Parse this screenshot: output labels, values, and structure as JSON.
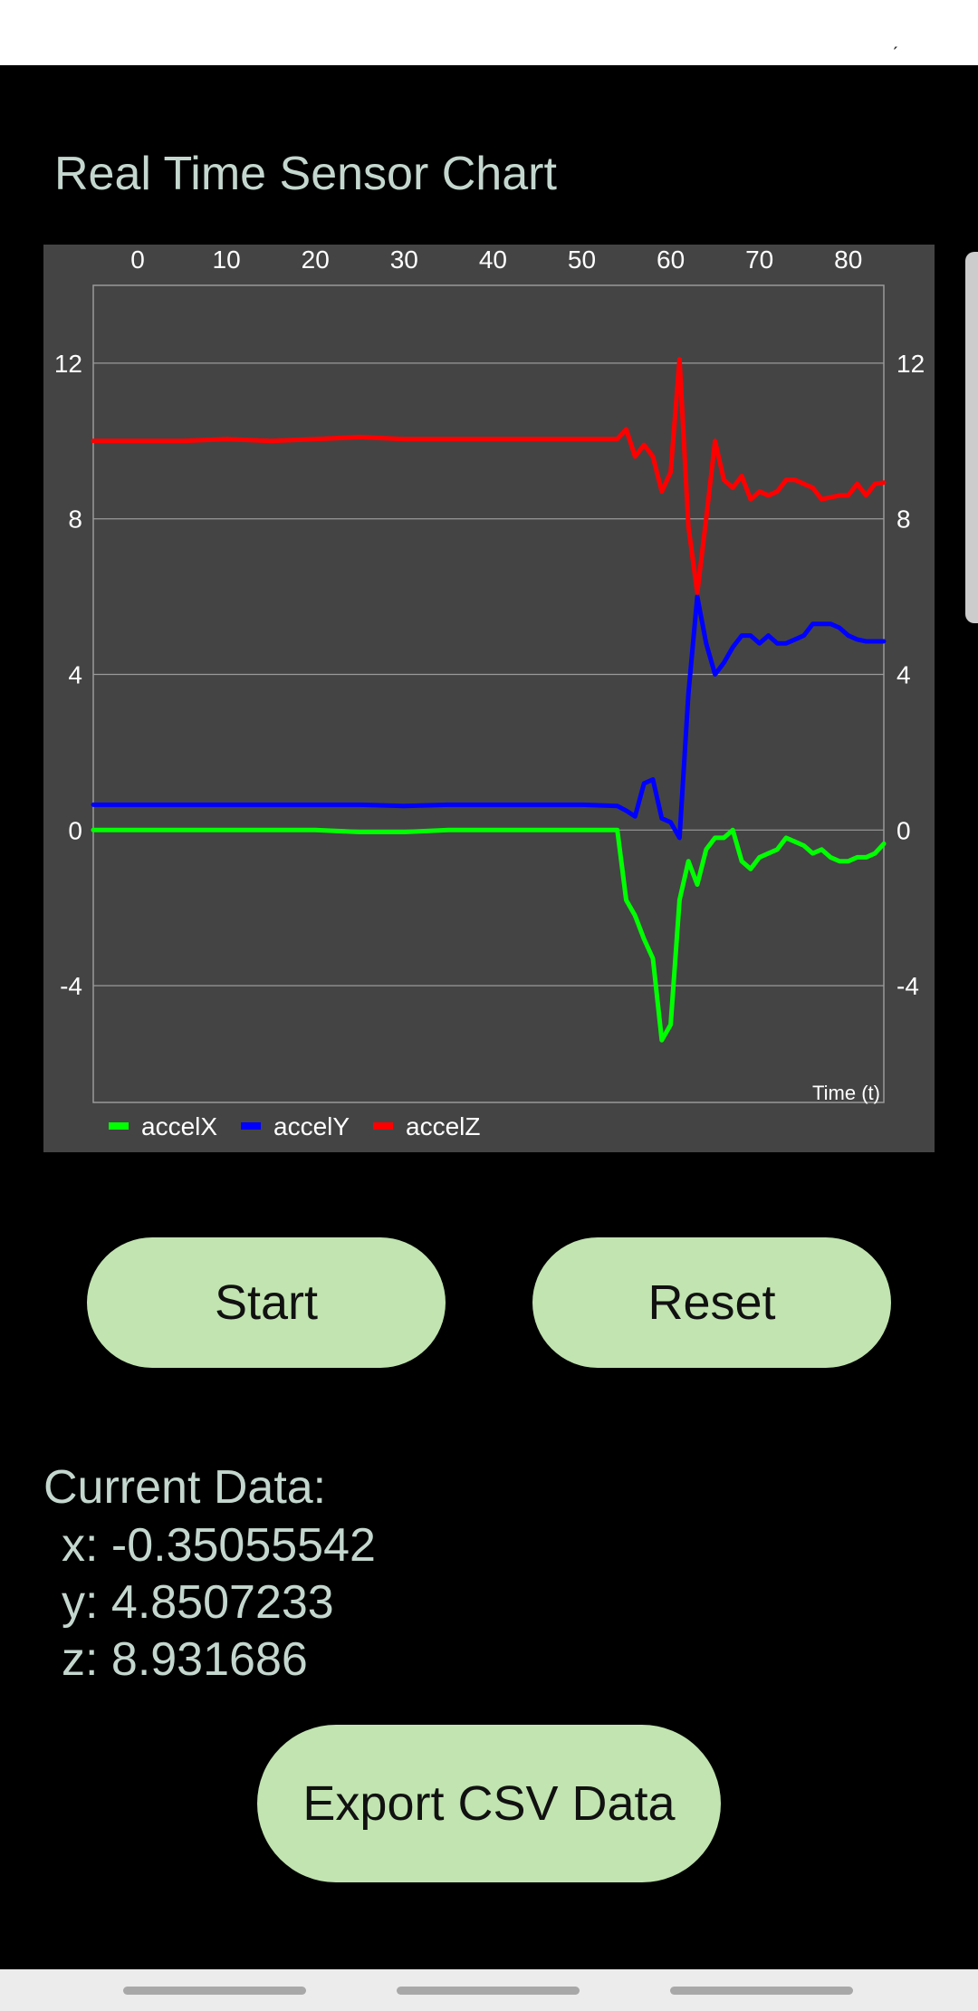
{
  "status_bar": {
    "text": "ˏ"
  },
  "app_title": "Real Time Sensor Chart",
  "chart_data": {
    "type": "line",
    "title": "",
    "xlabel": "Time (t)",
    "ylabel": "",
    "xlim": [
      -5,
      84
    ],
    "ylim": [
      -7,
      14
    ],
    "x_ticks": [
      "0",
      "10",
      "20",
      "30",
      "40",
      "50",
      "60",
      "70",
      "80"
    ],
    "y_ticks": [
      "12",
      "8",
      "4",
      "0",
      "-4"
    ],
    "grid": true,
    "legend_position": "bottom-left",
    "x": [
      -5,
      0,
      5,
      10,
      15,
      20,
      25,
      30,
      35,
      40,
      45,
      50,
      54,
      55,
      56,
      57,
      58,
      59,
      60,
      61,
      62,
      63,
      64,
      65,
      66,
      67,
      68,
      69,
      70,
      71,
      72,
      73,
      74,
      75,
      76,
      77,
      78,
      79,
      80,
      81,
      82,
      83,
      84
    ],
    "series": [
      {
        "name": "accelX",
        "color": "#00ff00",
        "values": [
          0,
          0,
          0,
          0,
          0,
          0,
          -0.05,
          -0.05,
          0,
          0,
          0,
          0,
          0,
          -1.8,
          -2.2,
          -2.8,
          -3.3,
          -5.4,
          -5.0,
          -1.8,
          -0.8,
          -1.4,
          -0.5,
          -0.2,
          -0.2,
          0,
          -0.8,
          -1.0,
          -0.7,
          -0.6,
          -0.5,
          -0.2,
          -0.3,
          -0.4,
          -0.6,
          -0.5,
          -0.7,
          -0.8,
          -0.8,
          -0.7,
          -0.7,
          -0.6,
          -0.35
        ]
      },
      {
        "name": "accelY",
        "color": "#0000ff",
        "values": [
          0.65,
          0.65,
          0.65,
          0.65,
          0.65,
          0.65,
          0.65,
          0.62,
          0.65,
          0.65,
          0.65,
          0.65,
          0.62,
          0.5,
          0.35,
          1.2,
          1.3,
          0.3,
          0.2,
          -0.2,
          3.5,
          6.0,
          4.8,
          4.0,
          4.3,
          4.7,
          5.0,
          5.0,
          4.8,
          5.0,
          4.8,
          4.8,
          4.9,
          5.0,
          5.3,
          5.3,
          5.3,
          5.2,
          5.0,
          4.9,
          4.85,
          4.85,
          4.85
        ]
      },
      {
        "name": "accelZ",
        "color": "#ff0000",
        "values": [
          10.0,
          10.0,
          10.0,
          10.05,
          10.0,
          10.05,
          10.1,
          10.05,
          10.05,
          10.05,
          10.05,
          10.05,
          10.05,
          10.3,
          9.6,
          9.9,
          9.6,
          8.7,
          9.2,
          12.1,
          7.8,
          6.1,
          8.0,
          10.0,
          9.0,
          8.8,
          9.1,
          8.5,
          8.7,
          8.6,
          8.7,
          9.0,
          9.0,
          8.9,
          8.8,
          8.5,
          8.55,
          8.6,
          8.6,
          8.9,
          8.6,
          8.9,
          8.93
        ]
      }
    ]
  },
  "controls": {
    "start_label": "Start",
    "reset_label": "Reset",
    "export_label": "Export CSV Data"
  },
  "current_data": {
    "heading": "Current Data:",
    "x_line": "x: -0.35055542",
    "y_line": "y: 4.8507233",
    "z_line": "z: 8.931686"
  }
}
